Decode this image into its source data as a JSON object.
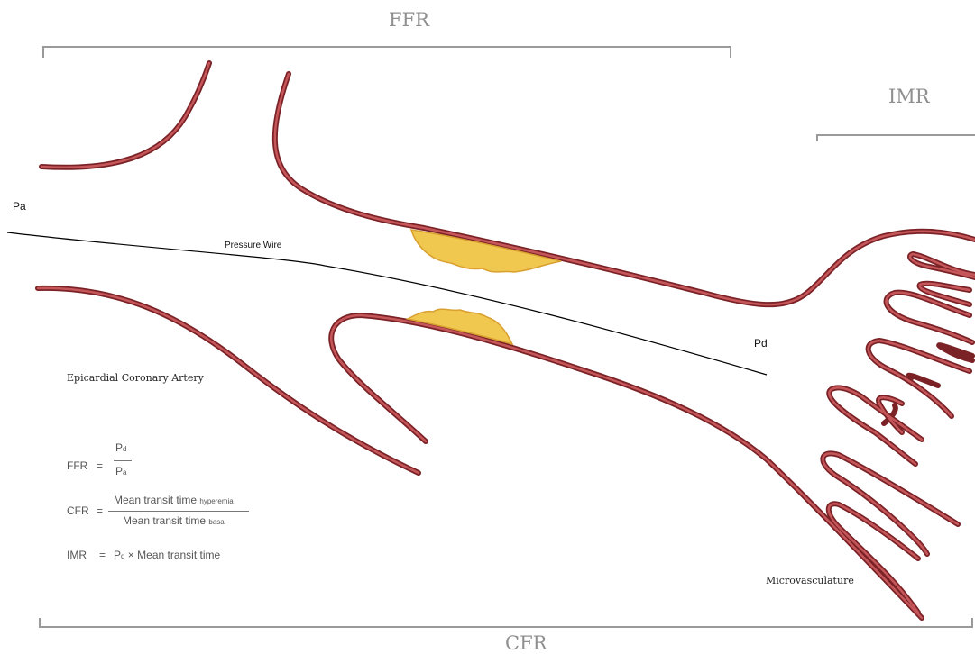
{
  "brackets": {
    "ffr": "FFR",
    "imr": "IMR",
    "cfr": "CFR"
  },
  "labels": {
    "pa": "Pa",
    "pd": "Pd",
    "pressure_wire": "Pressure Wire",
    "epicardial": "Epicardial Coronary Artery",
    "microvasculature": "Microvasculature"
  },
  "formulas": {
    "ffr": {
      "lhs": "FFR",
      "eq": "=",
      "num_base": "P",
      "num_sub": "d",
      "den_base": "P",
      "den_sub": "a"
    },
    "cfr": {
      "lhs": "CFR",
      "eq": "=",
      "num_base": "Mean transit time",
      "num_sub": "hyperemia",
      "den_base": "Mean transit time",
      "den_sub": "basal"
    },
    "imr": {
      "lhs": "IMR",
      "eq": "=",
      "rhs_base": "P",
      "rhs_sub": "d",
      "rhs_rest": " × Mean transit time"
    }
  },
  "colors": {
    "vessel_dark": "#7a2226",
    "vessel": "#b9454a",
    "plaque_fill": "#f0c850",
    "plaque_edge": "#d9a030",
    "bracket": "#9a9a9a",
    "wire": "#000000"
  }
}
